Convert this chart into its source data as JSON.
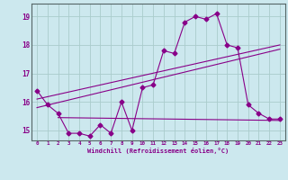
{
  "xlabel": "Windchill (Refroidissement éolien,°C)",
  "background_color": "#cce8ee",
  "grid_color": "#aacccc",
  "line_color": "#880088",
  "x_hours": [
    0,
    1,
    2,
    3,
    4,
    5,
    6,
    7,
    8,
    9,
    10,
    11,
    12,
    13,
    14,
    15,
    16,
    17,
    18,
    19,
    20,
    21,
    22,
    23
  ],
  "windchill": [
    16.4,
    15.9,
    15.6,
    14.9,
    14.9,
    14.8,
    15.2,
    14.9,
    16.0,
    15.0,
    16.5,
    16.6,
    17.8,
    17.7,
    18.8,
    19.0,
    18.9,
    19.1,
    18.0,
    17.9,
    15.9,
    15.6,
    15.4,
    15.4
  ],
  "temp_line1_x": [
    0,
    23
  ],
  "temp_line1_y": [
    16.1,
    18.0
  ],
  "temp_line2_x": [
    0,
    23
  ],
  "temp_line2_y": [
    15.8,
    17.85
  ],
  "temp_line3_x": [
    2,
    23
  ],
  "temp_line3_y": [
    15.45,
    15.35
  ],
  "ylim": [
    14.65,
    19.45
  ],
  "yticks": [
    15,
    16,
    17,
    18,
    19
  ],
  "xticks": [
    0,
    1,
    2,
    3,
    4,
    5,
    6,
    7,
    8,
    9,
    10,
    11,
    12,
    13,
    14,
    15,
    16,
    17,
    18,
    19,
    20,
    21,
    22,
    23
  ]
}
